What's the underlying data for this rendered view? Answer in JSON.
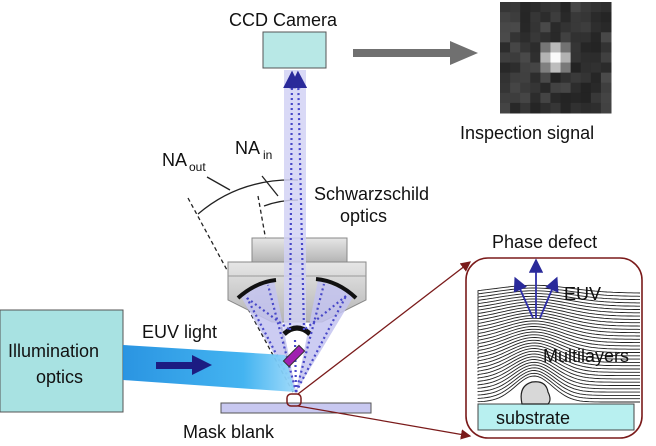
{
  "labels": {
    "ccd_camera": "CCD Camera",
    "inspection_signal": "Inspection signal",
    "na_out_main": "NA",
    "na_out_sub": "out",
    "na_in_main": "NA",
    "na_in_sub": "in",
    "schwarzschild_line1": "Schwarzschild",
    "schwarzschild_line2": "optics",
    "phase_defect": "Phase defect",
    "euv_inset": "EUV",
    "illumination_line1": "Illumination",
    "illumination_line2": "optics",
    "euv_light": "EUV light",
    "multilayers": "Multilayers",
    "substrate": "substrate",
    "mask_blank": "Mask blank"
  },
  "colors": {
    "camera_fill": "#b8e8e6",
    "illumination_fill": "#a8e2e2",
    "beam_cyan": "#29a8e8",
    "arrow_navy": "#1c1c82",
    "ray_purple": "#5a5acd",
    "cone_lavender": "#c4c4f0",
    "inset_border": "#7a1a1a",
    "defect_purple": "#a020b0",
    "housing_gray": "#c8c8c8",
    "substrate_fill": "#b8f0f0",
    "mask_fill": "#c8c8f0",
    "gray_arrow": "#707070"
  },
  "icons": {
    "inspection_signal_image": "pixelated-spot-image"
  }
}
